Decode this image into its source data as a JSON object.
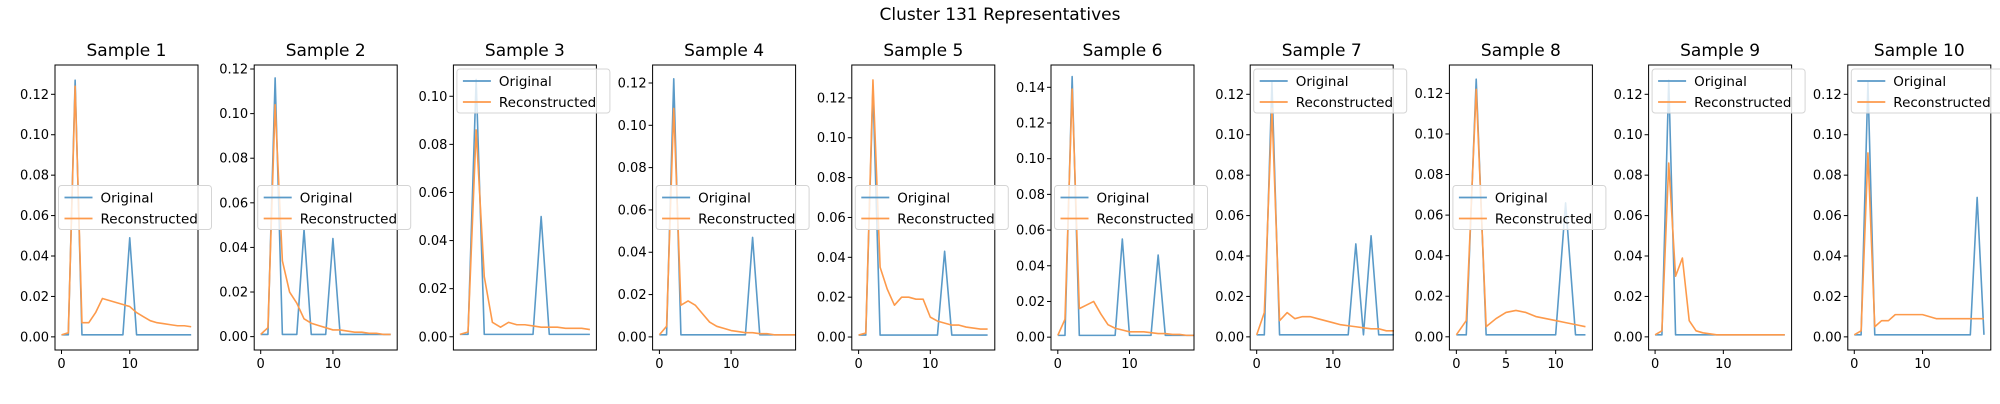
{
  "figure": {
    "title": "Cluster 131 Representatives",
    "original_color": "#5a9ac8",
    "reconstructed_color": "#fd9a4b",
    "legend_labels": [
      "Original",
      "Reconstructed"
    ]
  },
  "chart_data": [
    {
      "type": "line",
      "title": "Sample 1",
      "xlim": [
        -0.95,
        20.0
      ],
      "ylim": [
        -0.0065,
        0.1345
      ],
      "xticks": [
        0,
        10
      ],
      "yticks": [
        0.0,
        0.02,
        0.04,
        0.06,
        0.08,
        0.1,
        0.12
      ],
      "yticklabels": [
        "0.00",
        "0.02",
        "0.04",
        "0.06",
        "0.08",
        "0.10",
        "0.12"
      ],
      "legend": "center-left",
      "series": [
        {
          "name": "Original",
          "values": [
            0.001,
            0.001,
            0.127,
            0.001,
            0.001,
            0.001,
            0.001,
            0.001,
            0.001,
            0.001,
            0.049,
            0.001,
            0.001,
            0.001,
            0.001,
            0.001,
            0.001,
            0.001,
            0.001,
            0.001
          ]
        },
        {
          "name": "Reconstructed",
          "values": [
            0.001,
            0.002,
            0.124,
            0.007,
            0.007,
            0.012,
            0.019,
            0.018,
            0.017,
            0.016,
            0.015,
            0.012,
            0.01,
            0.008,
            0.007,
            0.0065,
            0.006,
            0.0055,
            0.0055,
            0.005
          ]
        }
      ]
    },
    {
      "type": "line",
      "title": "Sample 2",
      "xlim": [
        -0.9,
        18.9
      ],
      "ylim": [
        -0.006,
        0.1218
      ],
      "xticks": [
        0,
        10
      ],
      "yticks": [
        0.0,
        0.02,
        0.04,
        0.06,
        0.08,
        0.1,
        0.12
      ],
      "yticklabels": [
        "0.00",
        "0.02",
        "0.04",
        "0.06",
        "0.08",
        "0.10",
        "0.12"
      ],
      "legend": "center-left",
      "series": [
        {
          "name": "Original",
          "values": [
            0.001,
            0.001,
            0.116,
            0.001,
            0.001,
            0.001,
            0.048,
            0.001,
            0.001,
            0.001,
            0.044,
            0.001,
            0.001,
            0.001,
            0.001,
            0.001,
            0.001,
            0.001,
            0.001
          ]
        },
        {
          "name": "Reconstructed",
          "values": [
            0.001,
            0.004,
            0.104,
            0.034,
            0.02,
            0.015,
            0.008,
            0.006,
            0.005,
            0.004,
            0.003,
            0.003,
            0.0025,
            0.002,
            0.002,
            0.0015,
            0.0015,
            0.001,
            0.001
          ]
        }
      ]
    },
    {
      "type": "line",
      "title": "Sample 3",
      "xlim": [
        -0.8,
        16.8
      ],
      "ylim": [
        -0.0055,
        0.113
      ],
      "xticks": [],
      "yticks": [
        0.0,
        0.02,
        0.04,
        0.06,
        0.08,
        0.1
      ],
      "yticklabels": [
        "0.00",
        "0.02",
        "0.04",
        "0.06",
        "0.08",
        "0.10"
      ],
      "legend": "upper-left",
      "series": [
        {
          "name": "Original",
          "values": [
            0.001,
            0.001,
            0.107,
            0.001,
            0.001,
            0.001,
            0.001,
            0.001,
            0.001,
            0.001,
            0.05,
            0.001,
            0.001,
            0.001,
            0.001,
            0.001,
            0.001
          ]
        },
        {
          "name": "Reconstructed",
          "values": [
            0.001,
            0.002,
            0.086,
            0.025,
            0.006,
            0.004,
            0.006,
            0.005,
            0.005,
            0.0045,
            0.004,
            0.004,
            0.004,
            0.0035,
            0.0035,
            0.0035,
            0.003
          ]
        }
      ]
    },
    {
      "type": "line",
      "title": "Sample 4",
      "xlim": [
        -0.95,
        19.0
      ],
      "ylim": [
        -0.0062,
        0.1285
      ],
      "xticks": [
        0,
        10
      ],
      "yticks": [
        0.0,
        0.02,
        0.04,
        0.06,
        0.08,
        0.1,
        0.12
      ],
      "yticklabels": [
        "0.00",
        "0.02",
        "0.04",
        "0.06",
        "0.08",
        "0.10",
        "0.12"
      ],
      "legend": "center-left",
      "series": [
        {
          "name": "Original",
          "values": [
            0.001,
            0.001,
            0.122,
            0.001,
            0.001,
            0.001,
            0.001,
            0.001,
            0.001,
            0.001,
            0.001,
            0.001,
            0.001,
            0.047,
            0.001,
            0.001,
            0.001,
            0.001,
            0.001,
            0.001
          ]
        },
        {
          "name": "Reconstructed",
          "values": [
            0.001,
            0.005,
            0.108,
            0.015,
            0.017,
            0.015,
            0.011,
            0.007,
            0.005,
            0.004,
            0.003,
            0.0025,
            0.002,
            0.002,
            0.0015,
            0.0015,
            0.001,
            0.001,
            0.001,
            0.001
          ]
        }
      ]
    },
    {
      "type": "line",
      "title": "Sample 5",
      "xlim": [
        -0.95,
        19.0
      ],
      "ylim": [
        -0.0065,
        0.1365
      ],
      "xticks": [
        0,
        10
      ],
      "yticks": [
        0.0,
        0.02,
        0.04,
        0.06,
        0.08,
        0.1,
        0.12
      ],
      "yticklabels": [
        "0.00",
        "0.02",
        "0.04",
        "0.06",
        "0.08",
        "0.10",
        "0.12"
      ],
      "legend": "center-left",
      "series": [
        {
          "name": "Original",
          "values": [
            0.001,
            0.001,
            0.125,
            0.001,
            0.001,
            0.001,
            0.001,
            0.001,
            0.001,
            0.001,
            0.001,
            0.001,
            0.043,
            0.001,
            0.001,
            0.001,
            0.001,
            0.001,
            0.001
          ]
        },
        {
          "name": "Reconstructed",
          "values": [
            0.001,
            0.002,
            0.129,
            0.035,
            0.024,
            0.016,
            0.02,
            0.02,
            0.019,
            0.019,
            0.01,
            0.008,
            0.007,
            0.006,
            0.006,
            0.005,
            0.0045,
            0.004,
            0.004
          ]
        }
      ]
    },
    {
      "type": "line",
      "title": "Sample 6",
      "xlim": [
        -0.95,
        19.0
      ],
      "ylim": [
        -0.0072,
        0.1525
      ],
      "xticks": [
        0,
        10
      ],
      "yticks": [
        0.0,
        0.02,
        0.04,
        0.06,
        0.08,
        0.1,
        0.12,
        0.14
      ],
      "yticklabels": [
        "0.00",
        "0.02",
        "0.04",
        "0.06",
        "0.08",
        "0.10",
        "0.12",
        "0.14"
      ],
      "legend": "center-left",
      "series": [
        {
          "name": "Original",
          "values": [
            0.001,
            0.001,
            0.146,
            0.001,
            0.001,
            0.001,
            0.001,
            0.001,
            0.001,
            0.055,
            0.001,
            0.001,
            0.001,
            0.001,
            0.046,
            0.001,
            0.001,
            0.001,
            0.001,
            0.001
          ]
        },
        {
          "name": "Reconstructed",
          "values": [
            0.001,
            0.01,
            0.139,
            0.016,
            0.018,
            0.02,
            0.013,
            0.007,
            0.005,
            0.004,
            0.003,
            0.003,
            0.003,
            0.0025,
            0.002,
            0.002,
            0.0015,
            0.0015,
            0.001,
            0.001
          ]
        }
      ]
    },
    {
      "type": "line",
      "title": "Sample 7",
      "xlim": [
        -0.85,
        17.9
      ],
      "ylim": [
        -0.0065,
        0.1345
      ],
      "xticks": [
        0,
        10
      ],
      "yticks": [
        0.0,
        0.02,
        0.04,
        0.06,
        0.08,
        0.1,
        0.12
      ],
      "yticklabels": [
        "0.00",
        "0.02",
        "0.04",
        "0.06",
        "0.08",
        "0.10",
        "0.12"
      ],
      "legend": "upper-left",
      "series": [
        {
          "name": "Original",
          "values": [
            0.001,
            0.001,
            0.126,
            0.001,
            0.001,
            0.001,
            0.001,
            0.001,
            0.001,
            0.001,
            0.001,
            0.001,
            0.001,
            0.046,
            0.001,
            0.05,
            0.001,
            0.001,
            0.001
          ]
        },
        {
          "name": "Reconstructed",
          "values": [
            0.001,
            0.012,
            0.113,
            0.008,
            0.012,
            0.009,
            0.01,
            0.01,
            0.009,
            0.008,
            0.007,
            0.006,
            0.0055,
            0.005,
            0.0045,
            0.004,
            0.004,
            0.003,
            0.003
          ]
        }
      ]
    },
    {
      "type": "line",
      "title": "Sample 8",
      "xlim": [
        -0.7,
        13.7
      ],
      "ylim": [
        -0.0065,
        0.134
      ],
      "xticks": [
        0,
        5,
        10
      ],
      "yticks": [
        0.0,
        0.02,
        0.04,
        0.06,
        0.08,
        0.1,
        0.12
      ],
      "yticklabels": [
        "0.00",
        "0.02",
        "0.04",
        "0.06",
        "0.08",
        "0.10",
        "0.12"
      ],
      "legend": "center-left",
      "series": [
        {
          "name": "Original",
          "values": [
            0.001,
            0.001,
            0.127,
            0.001,
            0.001,
            0.001,
            0.001,
            0.001,
            0.001,
            0.001,
            0.001,
            0.066,
            0.001,
            0.001
          ]
        },
        {
          "name": "Reconstructed",
          "values": [
            0.001,
            0.008,
            0.122,
            0.005,
            0.009,
            0.012,
            0.013,
            0.012,
            0.01,
            0.009,
            0.008,
            0.007,
            0.006,
            0.005
          ]
        }
      ]
    },
    {
      "type": "line",
      "title": "Sample 9",
      "xlim": [
        -0.95,
        20.0
      ],
      "ylim": [
        -0.0065,
        0.1345
      ],
      "xticks": [
        0,
        10
      ],
      "yticks": [
        0.0,
        0.02,
        0.04,
        0.06,
        0.08,
        0.1,
        0.12
      ],
      "yticklabels": [
        "0.00",
        "0.02",
        "0.04",
        "0.06",
        "0.08",
        "0.10",
        "0.12"
      ],
      "legend": "upper-left",
      "series": [
        {
          "name": "Original",
          "values": [
            0.001,
            0.001,
            0.127,
            0.001,
            0.001,
            0.001,
            0.001,
            0.001,
            0.001,
            0.001,
            0.001,
            0.001,
            0.001,
            0.001,
            0.001,
            0.001,
            0.001,
            0.001,
            0.001,
            0.001
          ]
        },
        {
          "name": "Reconstructed",
          "values": [
            0.001,
            0.003,
            0.086,
            0.03,
            0.039,
            0.008,
            0.003,
            0.002,
            0.0015,
            0.001,
            0.001,
            0.001,
            0.001,
            0.001,
            0.001,
            0.001,
            0.001,
            0.001,
            0.001,
            0.001
          ]
        }
      ]
    },
    {
      "type": "line",
      "title": "Sample 10",
      "xlim": [
        -0.95,
        20.0
      ],
      "ylim": [
        -0.0065,
        0.1345
      ],
      "xticks": [
        0,
        10
      ],
      "yticks": [
        0.0,
        0.02,
        0.04,
        0.06,
        0.08,
        0.1,
        0.12
      ],
      "yticklabels": [
        "0.00",
        "0.02",
        "0.04",
        "0.06",
        "0.08",
        "0.10",
        "0.12"
      ],
      "legend": "upper-left",
      "series": [
        {
          "name": "Original",
          "values": [
            0.001,
            0.001,
            0.126,
            0.001,
            0.001,
            0.001,
            0.001,
            0.001,
            0.001,
            0.001,
            0.001,
            0.001,
            0.001,
            0.001,
            0.001,
            0.001,
            0.001,
            0.001,
            0.069,
            0.001
          ]
        },
        {
          "name": "Reconstructed",
          "values": [
            0.001,
            0.003,
            0.091,
            0.005,
            0.008,
            0.008,
            0.011,
            0.011,
            0.011,
            0.011,
            0.011,
            0.01,
            0.009,
            0.009,
            0.009,
            0.009,
            0.009,
            0.009,
            0.009,
            0.009
          ]
        }
      ]
    }
  ]
}
